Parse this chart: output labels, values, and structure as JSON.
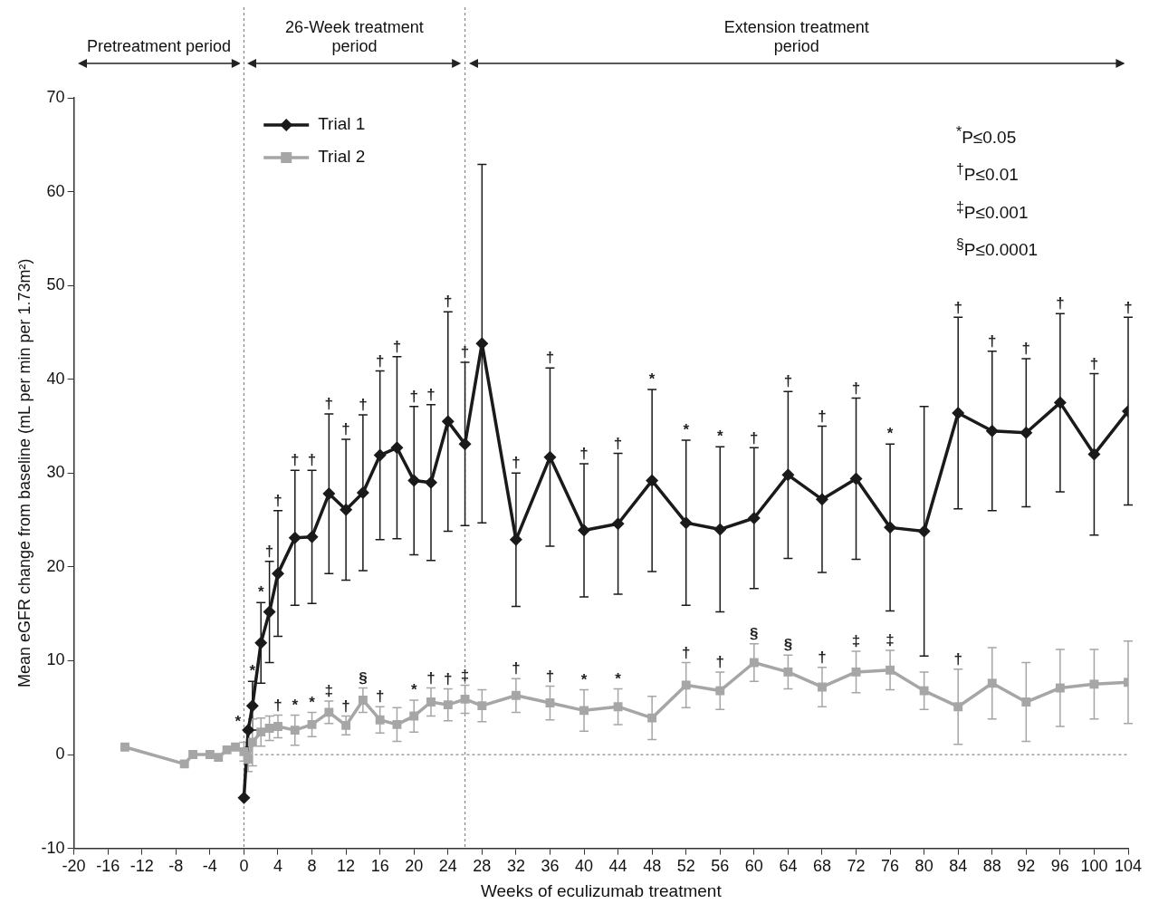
{
  "chart_data": {
    "type": "line",
    "xlabel": "Weeks of eculizumab treatment",
    "ylabel": "Mean eGFR change from baseline (mL per min per 1.73m²)",
    "xlim": [
      -20,
      104
    ],
    "xticks": [
      -20,
      -16,
      -12,
      -8,
      -4,
      0,
      4,
      8,
      12,
      16,
      20,
      24,
      28,
      32,
      36,
      40,
      44,
      48,
      52,
      56,
      60,
      64,
      68,
      72,
      76,
      80,
      84,
      88,
      92,
      96,
      100,
      104
    ],
    "ylim": [
      -10,
      70
    ],
    "yticks": [
      -10,
      0,
      10,
      20,
      30,
      40,
      50,
      60,
      70
    ],
    "grid": false,
    "legend": "top left",
    "line_style": "solid",
    "series": [
      {
        "name": "Trial 1",
        "color": "#1a1a1a",
        "marker": "diamond",
        "x": [
          0,
          0.5,
          1,
          2,
          3,
          4,
          6,
          8,
          10,
          12,
          14,
          16,
          18,
          20,
          22,
          24,
          26,
          28,
          32,
          36,
          40,
          44,
          48,
          52,
          56,
          60,
          64,
          68,
          72,
          76,
          80,
          84,
          88,
          92,
          96,
          100,
          104
        ],
        "values": [
          -4.6,
          2.6,
          5.2,
          11.9,
          15.2,
          19.3,
          23.1,
          23.2,
          27.8,
          26.1,
          27.9,
          31.9,
          32.7,
          29.2,
          29.0,
          35.5,
          33.1,
          43.8,
          22.9,
          31.7,
          23.9,
          24.6,
          29.2,
          24.7,
          24.0,
          25.2,
          29.8,
          27.2,
          29.4,
          24.2,
          23.8,
          36.4,
          34.5,
          34.3,
          37.5,
          32.0,
          36.6
        ],
        "errors": [
          null,
          null,
          2.6,
          4.3,
          5.4,
          6.7,
          7.2,
          7.1,
          8.5,
          7.5,
          8.3,
          9.0,
          9.7,
          7.9,
          8.3,
          11.7,
          8.7,
          19.1,
          7.1,
          9.5,
          7.1,
          7.5,
          9.7,
          8.8,
          8.8,
          7.5,
          8.9,
          7.8,
          8.6,
          8.9,
          13.3,
          10.2,
          8.5,
          7.9,
          9.5,
          8.6,
          10.0
        ]
      },
      {
        "name": "Trial 2",
        "color": "#a6a6a6",
        "marker": "square",
        "x": [
          -14,
          -7,
          -6,
          -4,
          -3,
          -2,
          -1,
          0,
          0.5,
          1,
          2,
          3,
          4,
          6,
          8,
          10,
          12,
          14,
          16,
          18,
          20,
          22,
          24,
          26,
          28,
          32,
          36,
          40,
          44,
          48,
          52,
          56,
          60,
          64,
          68,
          72,
          76,
          80,
          84,
          88,
          92,
          96,
          100,
          104
        ],
        "values": [
          0.8,
          -1.0,
          0,
          0,
          -0.3,
          0.5,
          0.8,
          0.3,
          -0.5,
          1.3,
          2.4,
          2.8,
          3.0,
          2.6,
          3.2,
          4.5,
          3.1,
          5.8,
          3.7,
          3.2,
          4.1,
          5.6,
          5.3,
          5.9,
          5.2,
          6.3,
          5.5,
          4.7,
          5.1,
          3.9,
          7.4,
          6.8,
          9.8,
          8.8,
          7.2,
          8.8,
          9.0,
          6.8,
          5.1,
          7.6,
          5.6,
          7.1,
          7.5,
          7.7
        ],
        "errors": [
          null,
          null,
          null,
          null,
          null,
          null,
          null,
          1.0,
          1.3,
          2.5,
          1.5,
          1.3,
          1.2,
          1.6,
          1.3,
          1.2,
          1.0,
          1.3,
          1.4,
          1.8,
          1.7,
          1.5,
          1.7,
          1.5,
          1.7,
          1.8,
          1.8,
          2.2,
          1.9,
          2.3,
          2.4,
          2.0,
          2.0,
          1.8,
          2.1,
          2.2,
          2.1,
          2.0,
          4.0,
          3.8,
          4.2,
          4.1,
          3.7,
          4.4
        ]
      }
    ],
    "ref_lines": [
      {
        "axis": "x",
        "value": 0,
        "line_style": "dotted",
        "color": "#888888"
      },
      {
        "axis": "x",
        "value": 26,
        "line_style": "dotted",
        "color": "#888888"
      },
      {
        "axis": "y",
        "value": 0,
        "line_style": "dotted",
        "color": "#888888"
      }
    ],
    "annotations": [
      "Pretreatment period",
      "26-Week treatment period",
      "Extension treatment period",
      "$^{*}$P≤0.05",
      "$^{†}$P≤0.01",
      "$^{‡}$P≤0.001",
      "$^{§}$P≤0.0001",
      {
        "text": "*",
        "x": 1,
        "y": 7.8
      },
      {
        "text": "*",
        "x": 2,
        "y": 16.2
      },
      {
        "text": "†",
        "x": 3,
        "y": 20.6
      },
      {
        "text": "†",
        "x": 4,
        "y": 26.0
      },
      {
        "text": "†",
        "x": 6,
        "y": 30.3
      },
      {
        "text": "†",
        "x": 8,
        "y": 30.3
      },
      {
        "text": "†",
        "x": 10,
        "y": 36.3
      },
      {
        "text": "†",
        "x": 12,
        "y": 33.6
      },
      {
        "text": "†",
        "x": 14,
        "y": 36.2
      },
      {
        "text": "†",
        "x": 16,
        "y": 40.9
      },
      {
        "text": "†",
        "x": 18,
        "y": 42.4
      },
      {
        "text": "†",
        "x": 20,
        "y": 37.1
      },
      {
        "text": "†",
        "x": 22,
        "y": 37.3
      },
      {
        "text": "†",
        "x": 24,
        "y": 47.2
      },
      {
        "text": "†",
        "x": 26,
        "y": 41.8
      },
      {
        "text": "†",
        "x": 32,
        "y": 30.0
      },
      {
        "text": "†",
        "x": 36,
        "y": 41.2
      },
      {
        "text": "†",
        "x": 40,
        "y": 31.0
      },
      {
        "text": "†",
        "x": 44,
        "y": 32.1
      },
      {
        "text": "*",
        "x": 48,
        "y": 38.9
      },
      {
        "text": "*",
        "x": 52,
        "y": 33.5
      },
      {
        "text": "*",
        "x": 56,
        "y": 32.8
      },
      {
        "text": "†",
        "x": 60,
        "y": 32.7
      },
      {
        "text": "†",
        "x": 64,
        "y": 38.7
      },
      {
        "text": "†",
        "x": 68,
        "y": 35.0
      },
      {
        "text": "†",
        "x": 72,
        "y": 38.0
      },
      {
        "text": "*",
        "x": 76,
        "y": 33.1
      },
      {
        "text": "†",
        "x": 84,
        "y": 46.6
      },
      {
        "text": "†",
        "x": 88,
        "y": 43.0
      },
      {
        "text": "†",
        "x": 92,
        "y": 42.2
      },
      {
        "text": "†",
        "x": 96,
        "y": 47.0
      },
      {
        "text": "†",
        "x": 100,
        "y": 40.6
      },
      {
        "text": "†",
        "x": 104,
        "y": 46.6
      },
      {
        "text": "*",
        "x": -0.7,
        "y": 2.4
      },
      {
        "text": "†",
        "x": 4,
        "y": 4.2
      },
      {
        "text": "*",
        "x": 6,
        "y": 4.2
      },
      {
        "text": "*",
        "x": 8,
        "y": 4.5
      },
      {
        "text": "‡",
        "x": 10,
        "y": 5.7
      },
      {
        "text": "†",
        "x": 12,
        "y": 4.1
      },
      {
        "text": "§",
        "x": 14,
        "y": 7.1
      },
      {
        "text": "†",
        "x": 16,
        "y": 5.1
      },
      {
        "text": "*",
        "x": 20,
        "y": 5.8
      },
      {
        "text": "†",
        "x": 22,
        "y": 7.1
      },
      {
        "text": "†",
        "x": 24,
        "y": 7.0
      },
      {
        "text": "‡",
        "x": 26,
        "y": 7.4
      },
      {
        "text": "†",
        "x": 32,
        "y": 8.1
      },
      {
        "text": "†",
        "x": 36,
        "y": 7.3
      },
      {
        "text": "*",
        "x": 40,
        "y": 6.9
      },
      {
        "text": "*",
        "x": 44,
        "y": 7.0
      },
      {
        "text": "†",
        "x": 52,
        "y": 9.8
      },
      {
        "text": "†",
        "x": 56,
        "y": 8.8
      },
      {
        "text": "§",
        "x": 60,
        "y": 11.8
      },
      {
        "text": "§",
        "x": 64,
        "y": 10.6
      },
      {
        "text": "†",
        "x": 68,
        "y": 9.3
      },
      {
        "text": "‡",
        "x": 72,
        "y": 11.0
      },
      {
        "text": "‡",
        "x": 76,
        "y": 11.1
      },
      {
        "text": "†",
        "x": 84,
        "y": 9.1
      }
    ]
  }
}
